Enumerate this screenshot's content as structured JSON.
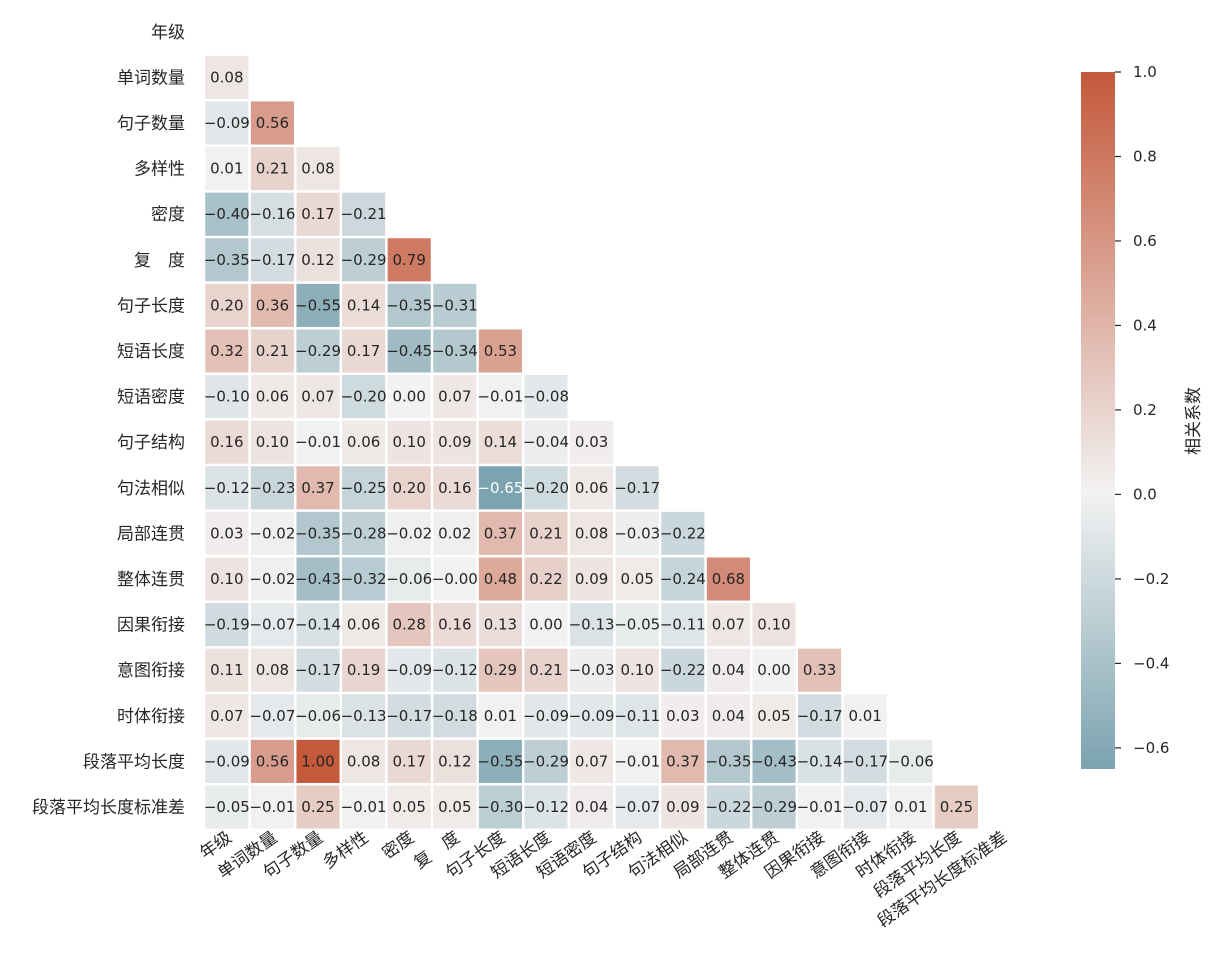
{
  "chart_data": {
    "type": "heatmap",
    "variables": [
      "年级",
      "单词数量",
      "句子数量",
      "多样性",
      "密度",
      "复　度",
      "句子长度",
      "短语长度",
      "短语密度",
      "句子结构",
      "句法相似",
      "局部连贯",
      "整体连贯",
      "因果衔接",
      "意图衔接",
      "时体衔接",
      "段落平均长度",
      "段落平均长度标准差"
    ],
    "lower_triangle": [
      [],
      [
        0.08
      ],
      [
        -0.09,
        0.56
      ],
      [
        0.01,
        0.21,
        0.08
      ],
      [
        -0.4,
        -0.16,
        0.17,
        -0.21
      ],
      [
        -0.35,
        -0.17,
        0.12,
        -0.29,
        0.79
      ],
      [
        0.2,
        0.36,
        -0.55,
        0.14,
        -0.35,
        -0.31
      ],
      [
        0.32,
        0.21,
        -0.29,
        0.17,
        -0.45,
        -0.34,
        0.53
      ],
      [
        -0.1,
        0.06,
        0.07,
        -0.2,
        0.0,
        0.07,
        -0.01,
        -0.08
      ],
      [
        0.16,
        0.1,
        -0.01,
        0.06,
        0.1,
        0.09,
        0.14,
        -0.04,
        0.03
      ],
      [
        -0.12,
        -0.23,
        0.37,
        -0.25,
        0.2,
        0.16,
        -0.65,
        -0.2,
        0.06,
        -0.17
      ],
      [
        0.03,
        -0.02,
        -0.35,
        -0.28,
        -0.02,
        0.02,
        0.37,
        0.21,
        0.08,
        -0.03,
        -0.22
      ],
      [
        0.1,
        -0.02,
        -0.43,
        -0.32,
        -0.06,
        -0.0,
        0.48,
        0.22,
        0.09,
        0.05,
        -0.24,
        0.68
      ],
      [
        -0.19,
        -0.07,
        -0.14,
        0.06,
        0.28,
        0.16,
        0.13,
        0.0,
        -0.13,
        -0.05,
        -0.11,
        0.07,
        0.1
      ],
      [
        0.11,
        0.08,
        -0.17,
        0.19,
        -0.09,
        -0.12,
        0.29,
        0.21,
        -0.03,
        0.1,
        -0.22,
        0.04,
        0.0,
        0.33
      ],
      [
        0.07,
        -0.07,
        -0.06,
        -0.13,
        -0.17,
        -0.18,
        0.01,
        -0.09,
        -0.09,
        -0.11,
        0.03,
        0.04,
        0.05,
        -0.17,
        0.01
      ],
      [
        -0.09,
        0.56,
        1.0,
        0.08,
        0.17,
        0.12,
        -0.55,
        -0.29,
        0.07,
        -0.01,
        0.37,
        -0.35,
        -0.43,
        -0.14,
        -0.17,
        -0.06
      ],
      [
        -0.05,
        -0.01,
        0.25,
        -0.01,
        0.05,
        0.05,
        -0.3,
        -0.12,
        0.04,
        -0.07,
        0.09,
        -0.22,
        -0.29,
        -0.01,
        -0.07,
        0.01,
        0.25
      ]
    ],
    "display_labels": [
      [
        "0.08"
      ],
      [
        "−0.09",
        "0.56"
      ],
      [
        "0.01",
        "0.21",
        "0.08"
      ],
      [
        "−0.40",
        "−0.16",
        "0.17",
        "−0.21"
      ],
      [
        "−0.35",
        "−0.17",
        "0.12",
        "−0.29",
        "0.79"
      ],
      [
        "0.20",
        "0.36",
        "−0.55",
        "0.14",
        "−0.35",
        "−0.31"
      ],
      [
        "0.32",
        "0.21",
        "−0.29",
        "0.17",
        "−0.45",
        "−0.34",
        "0.53"
      ],
      [
        "−0.10",
        "0.06",
        "0.07",
        "−0.20",
        "0.00",
        "0.07",
        "−0.01",
        "−0.08"
      ],
      [
        "0.16",
        "0.10",
        "−0.01",
        "0.06",
        "0.10",
        "0.09",
        "0.14",
        "−0.04",
        "0.03"
      ],
      [
        "−0.12",
        "−0.23",
        "0.37",
        "−0.25",
        "0.20",
        "0.16",
        "−0.65",
        "−0.20",
        "0.06",
        "−0.17"
      ],
      [
        "0.03",
        "−0.02",
        "−0.35",
        "−0.28",
        "−0.02",
        "0.02",
        "0.37",
        "0.21",
        "0.08",
        "−0.03",
        "−0.22"
      ],
      [
        "0.10",
        "−0.02",
        "−0.43",
        "−0.32",
        "−0.06",
        "−0.00",
        "0.48",
        "0.22",
        "0.09",
        "0.05",
        "−0.24",
        "0.68"
      ],
      [
        "−0.19",
        "−0.07",
        "−0.14",
        "0.06",
        "0.28",
        "0.16",
        "0.13",
        "0.00",
        "−0.13",
        "−0.05",
        "−0.11",
        "0.07",
        "0.10"
      ],
      [
        "0.11",
        "0.08",
        "−0.17",
        "0.19",
        "−0.09",
        "−0.12",
        "0.29",
        "0.21",
        "−0.03",
        "0.10",
        "−0.22",
        "0.04",
        "0.00",
        "0.33"
      ],
      [
        "0.07",
        "−0.07",
        "−0.06",
        "−0.13",
        "−0.17",
        "−0.18",
        "0.01",
        "−0.09",
        "−0.09",
        "−0.11",
        "0.03",
        "0.04",
        "0.05",
        "−0.17",
        "0.01"
      ],
      [
        "−0.09",
        "0.56",
        "1.00",
        "0.08",
        "0.17",
        "0.12",
        "−0.55",
        "−0.29",
        "0.07",
        "−0.01",
        "0.37",
        "−0.35",
        "−0.43",
        "−0.14",
        "−0.17",
        "−0.06"
      ],
      [
        "−0.05",
        "−0.01",
        "0.25",
        "−0.01",
        "0.05",
        "0.05",
        "−0.30",
        "−0.12",
        "0.04",
        "−0.07",
        "0.09",
        "−0.22",
        "−0.29",
        "−0.01",
        "−0.07",
        "0.01",
        "0.25"
      ]
    ],
    "colorbar": {
      "label": "相关系数",
      "vmin": -0.65,
      "vmax": 1.0,
      "ticks": [
        1.0,
        0.8,
        0.6,
        0.4,
        0.2,
        0.0,
        -0.2,
        -0.4,
        -0.6
      ],
      "tick_labels": [
        "1.0",
        "0.8",
        "0.6",
        "0.4",
        "0.2",
        "0.0",
        "−0.2",
        "−0.4",
        "−0.6"
      ],
      "colors": {
        "negative": "#7ba3b0",
        "center": "#f2f2f2",
        "positive": "#c4593b"
      }
    }
  }
}
